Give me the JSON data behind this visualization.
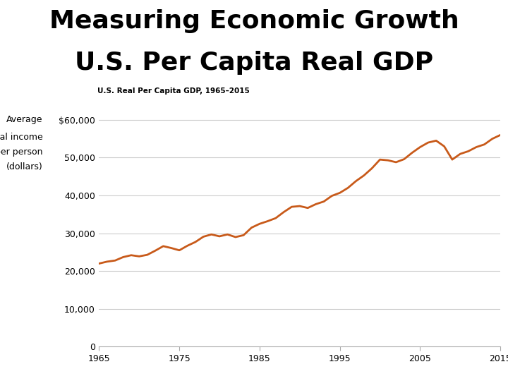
{
  "title_line1": "Measuring Economic Growth",
  "title_line2": "U.S. Per Capita Real GDP",
  "chart_subtitle": "U.S. Real Per Capita GDP, 1965–2015",
  "ylabel_lines": [
    "Average",
    "real income",
    "per person",
    "(dollars)"
  ],
  "title_fontsize": 26,
  "orange_bar_color": "#D4820A",
  "line_color": "#C85A1A",
  "background_color": "#ffffff",
  "chart_bg": "#ffffff",
  "xlim": [
    1965,
    2015
  ],
  "ylim": [
    0,
    65000
  ],
  "yticks": [
    0,
    10000,
    20000,
    30000,
    40000,
    50000,
    60000
  ],
  "ytick_labels": [
    "0",
    "10,000",
    "20,000",
    "30,000",
    "40,000",
    "50,000",
    "$60,000"
  ],
  "xticks": [
    1965,
    1975,
    1985,
    1995,
    2005,
    2015
  ],
  "years": [
    1965,
    1966,
    1967,
    1968,
    1969,
    1970,
    1971,
    1972,
    1973,
    1974,
    1975,
    1976,
    1977,
    1978,
    1979,
    1980,
    1981,
    1982,
    1983,
    1984,
    1985,
    1986,
    1987,
    1988,
    1989,
    1990,
    1991,
    1992,
    1993,
    1994,
    1995,
    1996,
    1997,
    1998,
    1999,
    2000,
    2001,
    2002,
    2003,
    2004,
    2005,
    2006,
    2007,
    2008,
    2009,
    2010,
    2011,
    2012,
    2013,
    2014,
    2015
  ],
  "gdp": [
    22000,
    22500,
    22800,
    23700,
    24200,
    23900,
    24300,
    25400,
    26600,
    26100,
    25500,
    26700,
    27700,
    29100,
    29700,
    29200,
    29700,
    29000,
    29500,
    31500,
    32500,
    33200,
    34000,
    35600,
    37000,
    37200,
    36700,
    37700,
    38400,
    39900,
    40700,
    42000,
    43800,
    45300,
    47200,
    49500,
    49300,
    48800,
    49600,
    51300,
    52800,
    54000,
    54500,
    53000,
    49500,
    51000,
    51700,
    52800,
    53500,
    55000,
    56000
  ]
}
